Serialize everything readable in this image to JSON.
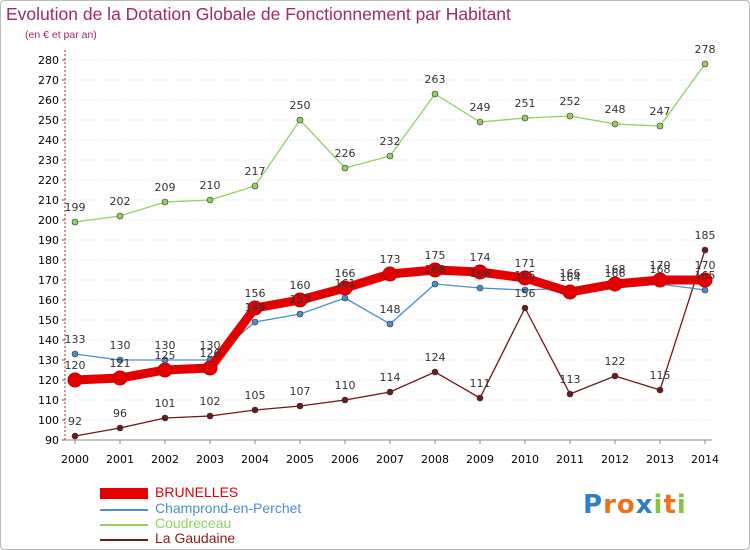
{
  "chart_data": {
    "type": "line",
    "title": "Evolution de la Dotation Globale de Fonctionnement par Habitant",
    "subtitle": "(en € et par an)",
    "xlabel": "",
    "ylabel": "",
    "ylim": [
      90,
      280
    ],
    "ytick_step": 10,
    "grid": true,
    "categories": [
      "2000",
      "2001",
      "2002",
      "2003",
      "2004",
      "2005",
      "2006",
      "2007",
      "2008",
      "2009",
      "2010",
      "2011",
      "2012",
      "2013",
      "2014"
    ],
    "series": [
      {
        "name": "BRUNELLES",
        "color": "#e20000",
        "values": [
          120,
          121,
          125,
          126,
          156,
          160,
          166,
          173,
          175,
          174,
          171,
          164,
          168,
          170,
          170
        ]
      },
      {
        "name": "Champrond-en-Perchet",
        "color": "#4a8fd0",
        "values": [
          133,
          130,
          130,
          130,
          149,
          153,
          161,
          148,
          168,
          166,
          165,
          166,
          166,
          168,
          165
        ]
      },
      {
        "name": "Coudreceau",
        "color": "#90d060",
        "values": [
          199,
          202,
          209,
          210,
          217,
          250,
          226,
          232,
          263,
          249,
          251,
          252,
          248,
          247,
          278
        ]
      },
      {
        "name": "La Gaudaine",
        "color": "#6b1a1a",
        "values": [
          92,
          96,
          101,
          102,
          105,
          107,
          110,
          114,
          124,
          111,
          156,
          113,
          122,
          115,
          185
        ]
      }
    ]
  },
  "legend": {
    "items": [
      {
        "label": "BRUNELLES"
      },
      {
        "label": "Champrond-en-Perchet"
      },
      {
        "label": "Coudreceau"
      },
      {
        "label": "La Gaudaine"
      }
    ]
  },
  "logo": {
    "text": "Proxiti"
  }
}
